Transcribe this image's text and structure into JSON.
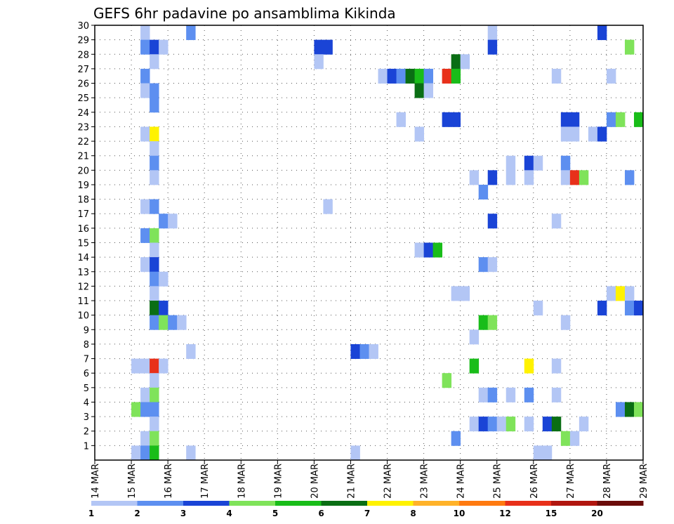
{
  "chart_data": {
    "type": "heatmap",
    "title": "GEFS 6hr padavine po ansamblima Kikinda",
    "x_tick_labels": [
      "14 MAR",
      "15 MAR",
      "16 MAR",
      "17 MAR",
      "18 MAR",
      "19 MAR",
      "20 MAR",
      "21 MAR",
      "22 MAR",
      "23 MAR",
      "24 MAR",
      "25 MAR",
      "26 MAR",
      "27 MAR",
      "28 MAR",
      "29 MAR"
    ],
    "x_range_days": [
      14,
      29
    ],
    "y_tick_labels": [
      "1",
      "2",
      "3",
      "4",
      "5",
      "6",
      "7",
      "8",
      "9",
      "10",
      "11",
      "12",
      "13",
      "14",
      "15",
      "16",
      "17",
      "18",
      "19",
      "20",
      "21",
      "22",
      "23",
      "24",
      "25",
      "26",
      "27",
      "28",
      "29",
      "30"
    ],
    "y_range": [
      0,
      30
    ],
    "grid": true,
    "colorbar": {
      "labels": [
        "1",
        "2",
        "3",
        "4",
        "5",
        "6",
        "7",
        "8",
        "10",
        "12",
        "15",
        "20"
      ],
      "colors": [
        "#b3c6f5",
        "#5d8ff0",
        "#1a44d6",
        "#7fe35a",
        "#19bd19",
        "#0a6e14",
        "#fff200",
        "#ffb229",
        "#ff7a10",
        "#e8301a",
        "#b1160f",
        "#6b0c0a"
      ]
    },
    "cells": [
      {
        "m": 30,
        "d": 15.25,
        "l": 1
      },
      {
        "m": 30,
        "d": 16.5,
        "l": 2
      },
      {
        "m": 30,
        "d": 24.75,
        "l": 1
      },
      {
        "m": 30,
        "d": 27.75,
        "l": 3
      },
      {
        "m": 29,
        "d": 15.25,
        "l": 2
      },
      {
        "m": 29,
        "d": 15.5,
        "l": 3
      },
      {
        "m": 29,
        "d": 15.75,
        "l": 1
      },
      {
        "m": 29,
        "d": 20.0,
        "l": 3
      },
      {
        "m": 29,
        "d": 20.25,
        "l": 3
      },
      {
        "m": 29,
        "d": 24.75,
        "l": 3
      },
      {
        "m": 29,
        "d": 28.5,
        "l": 4
      },
      {
        "m": 28,
        "d": 15.5,
        "l": 1
      },
      {
        "m": 28,
        "d": 20.0,
        "l": 1
      },
      {
        "m": 28,
        "d": 23.75,
        "l": 6
      },
      {
        "m": 28,
        "d": 24.0,
        "l": 1
      },
      {
        "m": 27,
        "d": 15.25,
        "l": 2
      },
      {
        "m": 27,
        "d": 21.75,
        "l": 1
      },
      {
        "m": 27,
        "d": 22.0,
        "l": 3
      },
      {
        "m": 27,
        "d": 22.25,
        "l": 2
      },
      {
        "m": 27,
        "d": 22.5,
        "l": 6
      },
      {
        "m": 27,
        "d": 22.75,
        "l": 5
      },
      {
        "m": 27,
        "d": 23.0,
        "l": 2
      },
      {
        "m": 27,
        "d": 23.5,
        "l": 10
      },
      {
        "m": 27,
        "d": 23.75,
        "l": 5
      },
      {
        "m": 27,
        "d": 26.5,
        "l": 1
      },
      {
        "m": 27,
        "d": 28.0,
        "l": 1
      },
      {
        "m": 26,
        "d": 15.25,
        "l": 1
      },
      {
        "m": 26,
        "d": 15.5,
        "l": 2
      },
      {
        "m": 26,
        "d": 22.75,
        "l": 6
      },
      {
        "m": 26,
        "d": 23.0,
        "l": 1
      },
      {
        "m": 25,
        "d": 15.5,
        "l": 2
      },
      {
        "m": 24,
        "d": 22.25,
        "l": 1
      },
      {
        "m": 24,
        "d": 23.5,
        "l": 3
      },
      {
        "m": 24,
        "d": 23.75,
        "l": 3
      },
      {
        "m": 24,
        "d": 26.75,
        "l": 3
      },
      {
        "m": 24,
        "d": 27.0,
        "l": 3
      },
      {
        "m": 24,
        "d": 28.0,
        "l": 2
      },
      {
        "m": 24,
        "d": 28.25,
        "l": 4
      },
      {
        "m": 24,
        "d": 28.75,
        "l": 5
      },
      {
        "m": 23,
        "d": 15.25,
        "l": 1
      },
      {
        "m": 23,
        "d": 15.5,
        "l": 7
      },
      {
        "m": 23,
        "d": 22.75,
        "l": 1
      },
      {
        "m": 23,
        "d": 26.75,
        "l": 1
      },
      {
        "m": 23,
        "d": 27.0,
        "l": 1
      },
      {
        "m": 23,
        "d": 27.5,
        "l": 1
      },
      {
        "m": 23,
        "d": 27.75,
        "l": 3
      },
      {
        "m": 22,
        "d": 15.5,
        "l": 1
      },
      {
        "m": 21,
        "d": 15.5,
        "l": 2
      },
      {
        "m": 21,
        "d": 25.25,
        "l": 1
      },
      {
        "m": 21,
        "d": 25.75,
        "l": 3
      },
      {
        "m": 21,
        "d": 26.0,
        "l": 1
      },
      {
        "m": 21,
        "d": 26.75,
        "l": 2
      },
      {
        "m": 20,
        "d": 15.5,
        "l": 1
      },
      {
        "m": 20,
        "d": 24.25,
        "l": 1
      },
      {
        "m": 20,
        "d": 24.75,
        "l": 3
      },
      {
        "m": 20,
        "d": 25.25,
        "l": 1
      },
      {
        "m": 20,
        "d": 25.75,
        "l": 1
      },
      {
        "m": 20,
        "d": 26.75,
        "l": 1
      },
      {
        "m": 20,
        "d": 27.0,
        "l": 10
      },
      {
        "m": 20,
        "d": 27.25,
        "l": 4
      },
      {
        "m": 20,
        "d": 28.5,
        "l": 2
      },
      {
        "m": 19,
        "d": 24.5,
        "l": 2
      },
      {
        "m": 18,
        "d": 15.25,
        "l": 1
      },
      {
        "m": 18,
        "d": 15.5,
        "l": 2
      },
      {
        "m": 18,
        "d": 20.25,
        "l": 1
      },
      {
        "m": 17,
        "d": 15.75,
        "l": 2
      },
      {
        "m": 17,
        "d": 16.0,
        "l": 1
      },
      {
        "m": 17,
        "d": 24.75,
        "l": 3
      },
      {
        "m": 17,
        "d": 26.5,
        "l": 1
      },
      {
        "m": 16,
        "d": 15.25,
        "l": 2
      },
      {
        "m": 16,
        "d": 15.5,
        "l": 4
      },
      {
        "m": 15,
        "d": 15.5,
        "l": 1
      },
      {
        "m": 15,
        "d": 22.75,
        "l": 1
      },
      {
        "m": 15,
        "d": 23.0,
        "l": 3
      },
      {
        "m": 15,
        "d": 23.25,
        "l": 5
      },
      {
        "m": 14,
        "d": 15.25,
        "l": 1
      },
      {
        "m": 14,
        "d": 15.5,
        "l": 3
      },
      {
        "m": 14,
        "d": 24.5,
        "l": 2
      },
      {
        "m": 14,
        "d": 24.75,
        "l": 1
      },
      {
        "m": 13,
        "d": 15.5,
        "l": 2
      },
      {
        "m": 13,
        "d": 15.75,
        "l": 1
      },
      {
        "m": 12,
        "d": 15.5,
        "l": 1
      },
      {
        "m": 12,
        "d": 23.75,
        "l": 1
      },
      {
        "m": 12,
        "d": 24.0,
        "l": 1
      },
      {
        "m": 12,
        "d": 28.0,
        "l": 1
      },
      {
        "m": 12,
        "d": 28.25,
        "l": 7
      },
      {
        "m": 12,
        "d": 28.5,
        "l": 1
      },
      {
        "m": 11,
        "d": 15.5,
        "l": 6
      },
      {
        "m": 11,
        "d": 15.75,
        "l": 3
      },
      {
        "m": 11,
        "d": 26.0,
        "l": 1
      },
      {
        "m": 11,
        "d": 27.75,
        "l": 3
      },
      {
        "m": 11,
        "d": 28.5,
        "l": 2
      },
      {
        "m": 11,
        "d": 28.75,
        "l": 3
      },
      {
        "m": 10,
        "d": 15.5,
        "l": 2
      },
      {
        "m": 10,
        "d": 15.75,
        "l": 4
      },
      {
        "m": 10,
        "d": 16.0,
        "l": 2
      },
      {
        "m": 10,
        "d": 16.25,
        "l": 1
      },
      {
        "m": 10,
        "d": 24.5,
        "l": 5
      },
      {
        "m": 10,
        "d": 24.75,
        "l": 4
      },
      {
        "m": 10,
        "d": 26.75,
        "l": 1
      },
      {
        "m": 9,
        "d": 24.25,
        "l": 1
      },
      {
        "m": 8,
        "d": 16.5,
        "l": 1
      },
      {
        "m": 8,
        "d": 21.0,
        "l": 3
      },
      {
        "m": 8,
        "d": 21.25,
        "l": 2
      },
      {
        "m": 8,
        "d": 21.5,
        "l": 1
      },
      {
        "m": 7,
        "d": 15.0,
        "l": 1
      },
      {
        "m": 7,
        "d": 15.25,
        "l": 1
      },
      {
        "m": 7,
        "d": 15.5,
        "l": 10
      },
      {
        "m": 7,
        "d": 15.75,
        "l": 1
      },
      {
        "m": 7,
        "d": 24.25,
        "l": 5
      },
      {
        "m": 7,
        "d": 25.75,
        "l": 7
      },
      {
        "m": 7,
        "d": 26.5,
        "l": 1
      },
      {
        "m": 6,
        "d": 15.5,
        "l": 1
      },
      {
        "m": 6,
        "d": 23.5,
        "l": 4
      },
      {
        "m": 5,
        "d": 15.25,
        "l": 1
      },
      {
        "m": 5,
        "d": 15.5,
        "l": 4
      },
      {
        "m": 5,
        "d": 24.5,
        "l": 1
      },
      {
        "m": 5,
        "d": 24.75,
        "l": 2
      },
      {
        "m": 5,
        "d": 25.25,
        "l": 1
      },
      {
        "m": 5,
        "d": 25.75,
        "l": 2
      },
      {
        "m": 5,
        "d": 26.5,
        "l": 1
      },
      {
        "m": 4,
        "d": 15.0,
        "l": 4
      },
      {
        "m": 4,
        "d": 15.25,
        "l": 2
      },
      {
        "m": 4,
        "d": 15.5,
        "l": 2
      },
      {
        "m": 4,
        "d": 28.25,
        "l": 2
      },
      {
        "m": 4,
        "d": 28.5,
        "l": 6
      },
      {
        "m": 4,
        "d": 28.75,
        "l": 4
      },
      {
        "m": 3,
        "d": 15.5,
        "l": 1
      },
      {
        "m": 3,
        "d": 24.25,
        "l": 1
      },
      {
        "m": 3,
        "d": 24.5,
        "l": 3
      },
      {
        "m": 3,
        "d": 24.75,
        "l": 2
      },
      {
        "m": 3,
        "d": 25.0,
        "l": 1
      },
      {
        "m": 3,
        "d": 25.25,
        "l": 4
      },
      {
        "m": 3,
        "d": 25.75,
        "l": 1
      },
      {
        "m": 3,
        "d": 26.25,
        "l": 3
      },
      {
        "m": 3,
        "d": 26.5,
        "l": 6
      },
      {
        "m": 3,
        "d": 27.25,
        "l": 1
      },
      {
        "m": 2,
        "d": 15.25,
        "l": 1
      },
      {
        "m": 2,
        "d": 15.5,
        "l": 4
      },
      {
        "m": 2,
        "d": 23.75,
        "l": 2
      },
      {
        "m": 2,
        "d": 26.75,
        "l": 4
      },
      {
        "m": 2,
        "d": 27.0,
        "l": 1
      },
      {
        "m": 1,
        "d": 15.0,
        "l": 1
      },
      {
        "m": 1,
        "d": 15.25,
        "l": 2
      },
      {
        "m": 1,
        "d": 15.5,
        "l": 5
      },
      {
        "m": 1,
        "d": 16.5,
        "l": 1
      },
      {
        "m": 1,
        "d": 21.0,
        "l": 1
      },
      {
        "m": 1,
        "d": 26.0,
        "l": 1
      },
      {
        "m": 1,
        "d": 26.25,
        "l": 1
      }
    ]
  }
}
